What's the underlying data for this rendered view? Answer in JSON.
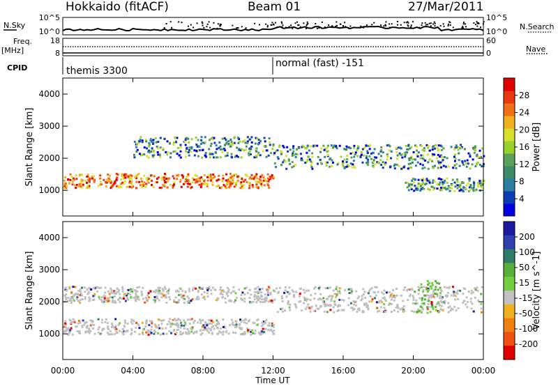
{
  "header": {
    "station": "Hokkaido (fitACF)",
    "beam": "Beam 01",
    "date": "27/Mar/2011"
  },
  "aux_labels": {
    "nsky": "N.Sky",
    "nsearch": "N.Search",
    "freq": "Freq.",
    "freq_unit": "[MHz]",
    "nave": "Nave",
    "cpid": "CPID"
  },
  "aux_ticks": {
    "noise_left": [
      "10^5",
      "10^0"
    ],
    "noise_right": [
      "10^5",
      "10^0"
    ],
    "freq_left": [
      "18",
      "8"
    ],
    "nave_right": [
      "60",
      "0"
    ]
  },
  "cpid_segments": [
    {
      "label": "themis 3300",
      "start": "00:00"
    },
    {
      "label": "normal (fast) -151",
      "start": "12:00"
    }
  ],
  "chart_data": [
    {
      "type": "heatmap",
      "panel": "power",
      "ylabel": "Slant Range [km]",
      "xlabel": "Time UT",
      "x_ticks": [
        "00:00",
        "04:00",
        "08:00",
        "12:00",
        "16:00",
        "20:00",
        "00:00"
      ],
      "y_ticks": [
        1000,
        2000,
        3000,
        4000
      ],
      "ylim": [
        200,
        4500
      ],
      "colorbar": {
        "label": "Power [dB]",
        "ticks": [
          "4",
          "8",
          "12",
          "16",
          "20",
          "24",
          "28"
        ],
        "colors": [
          "#0000e0",
          "#0a3fb4",
          "#2a7fa0",
          "#3c8c6a",
          "#5aa05a",
          "#9ad02a",
          "#d8e02a",
          "#f0b020",
          "#f07018",
          "#e83810",
          "#e00000"
        ]
      },
      "bands_km": [
        {
          "t_start": 0,
          "t_end": 12,
          "range_start": 1100,
          "range_end": 1550,
          "level": "high"
        },
        {
          "t_start": 4,
          "t_end": 12,
          "range_start": 2050,
          "range_end": 2700,
          "level": "mid"
        },
        {
          "t_start": 12,
          "t_end": 24,
          "range_start": 1700,
          "range_end": 2450,
          "level": "mid"
        },
        {
          "t_start": 19.5,
          "t_end": 24,
          "range_start": 1000,
          "range_end": 1400,
          "level": "mid"
        }
      ]
    },
    {
      "type": "heatmap",
      "panel": "velocity",
      "ylabel": "Slant Range [km]",
      "xlabel": "Time UT",
      "x_ticks": [
        "00:00",
        "04:00",
        "08:00",
        "12:00",
        "16:00",
        "20:00",
        "00:00"
      ],
      "y_ticks": [
        1000,
        2000,
        3000,
        4000
      ],
      "ylim": [
        200,
        4500
      ],
      "colorbar": {
        "label": "Velocity [m s^-1]",
        "ticks": [
          "200",
          "100",
          "50",
          "15",
          "-15",
          "-50",
          "-100",
          "-200"
        ],
        "colors": [
          "#1a1aa0",
          "#2f3fb0",
          "#2e7d6a",
          "#58b03a",
          "#70d040",
          "#c0c0c0",
          "#f0b020",
          "#f08010",
          "#f05010",
          "#e00000"
        ]
      },
      "bands_km": [
        {
          "t_start": 0,
          "t_end": 12,
          "range_start": 1000,
          "range_end": 1500,
          "level": "ground"
        },
        {
          "t_start": 0,
          "t_end": 12,
          "range_start": 2000,
          "range_end": 2500,
          "level": "ground"
        },
        {
          "t_start": 12,
          "t_end": 24,
          "range_start": 1700,
          "range_end": 2500,
          "level": "ground"
        },
        {
          "t_start": 20,
          "t_end": 21.5,
          "range_start": 1650,
          "range_end": 2700,
          "level": "positive"
        }
      ]
    }
  ]
}
